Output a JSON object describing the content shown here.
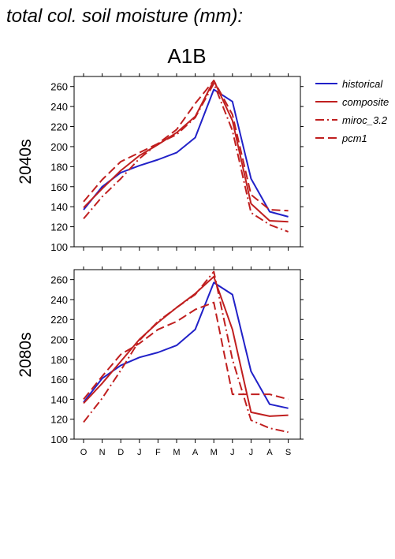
{
  "figure": {
    "title": "total col. soil moisture (mm):",
    "scenario": "A1B"
  },
  "colors": {
    "historical": "#2121c8",
    "model": "#c01f1f"
  },
  "legend": [
    {
      "key": "historical",
      "label": "historical",
      "dash": "solid"
    },
    {
      "key": "composite",
      "label": "composite",
      "dash": "solid"
    },
    {
      "key": "miroc",
      "label": "miroc_3.2",
      "dash": "dashdot"
    },
    {
      "key": "pcm1",
      "label": "pcm1",
      "dash": "dash"
    }
  ],
  "chart_data": [
    {
      "type": "line",
      "title": "2040s",
      "categories": [
        "O",
        "N",
        "D",
        "J",
        "F",
        "M",
        "A",
        "M",
        "J",
        "J",
        "A",
        "S"
      ],
      "ylim": [
        100,
        270
      ],
      "yticks": [
        100,
        120,
        140,
        160,
        180,
        200,
        220,
        240,
        260
      ],
      "series": [
        {
          "name": "historical",
          "values": [
            137,
            160,
            174,
            181,
            187,
            194,
            209,
            257,
            245,
            168,
            135,
            130
          ]
        },
        {
          "name": "composite",
          "values": [
            139,
            158,
            176,
            191,
            202,
            214,
            230,
            266,
            226,
            143,
            126,
            125
          ]
        },
        {
          "name": "miroc_3.2",
          "values": [
            128,
            150,
            168,
            188,
            203,
            212,
            229,
            263,
            216,
            134,
            122,
            115
          ]
        },
        {
          "name": "pcm1",
          "values": [
            145,
            167,
            185,
            194,
            203,
            217,
            243,
            266,
            232,
            152,
            137,
            136
          ]
        }
      ]
    },
    {
      "type": "line",
      "title": "2080s",
      "categories": [
        "O",
        "N",
        "D",
        "J",
        "F",
        "M",
        "A",
        "M",
        "J",
        "J",
        "A",
        "S"
      ],
      "ylim": [
        100,
        270
      ],
      "yticks": [
        100,
        120,
        140,
        160,
        180,
        200,
        220,
        240,
        260
      ],
      "series": [
        {
          "name": "historical",
          "values": [
            137,
            161,
            174,
            182,
            187,
            194,
            210,
            257,
            245,
            168,
            135,
            131
          ]
        },
        {
          "name": "composite",
          "values": [
            136,
            156,
            178,
            200,
            217,
            232,
            246,
            263,
            210,
            127,
            123,
            124
          ]
        },
        {
          "name": "miroc_3.2",
          "values": [
            117,
            141,
            169,
            199,
            218,
            232,
            245,
            268,
            180,
            119,
            111,
            107
          ]
        },
        {
          "name": "pcm1",
          "values": [
            140,
            163,
            185,
            196,
            210,
            218,
            230,
            237,
            145,
            145,
            145,
            140
          ]
        }
      ]
    }
  ]
}
